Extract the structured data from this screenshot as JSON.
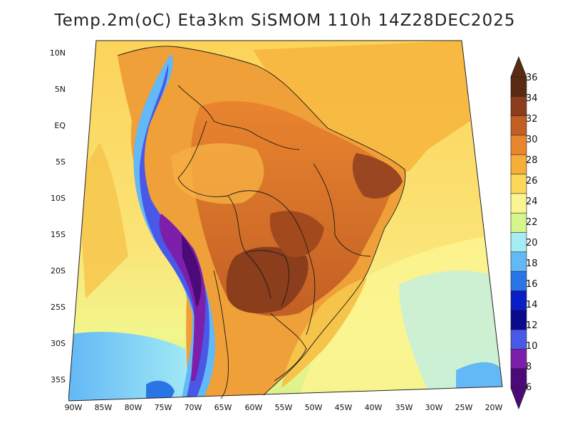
{
  "title": "Temp.2m(oC) Eta3km SiSMOM 110h 14Z28DEC2025",
  "map": {
    "variable": "2 m air temperature",
    "units": "oC",
    "region": "South America",
    "lat_labels": [
      "10N",
      "5N",
      "EQ",
      "5S",
      "10S",
      "15S",
      "20S",
      "25S",
      "30S",
      "35S"
    ],
    "lon_labels": [
      "90W",
      "85W",
      "80W",
      "75W",
      "70W",
      "65W",
      "60W",
      "55W",
      "50W",
      "45W",
      "40W",
      "35W",
      "30W",
      "25W",
      "20W"
    ]
  },
  "colorbar": {
    "labels": [
      "36",
      "34",
      "32",
      "30",
      "28",
      "26",
      "24",
      "22",
      "20",
      "18",
      "16",
      "14",
      "12",
      "10",
      "8",
      "6"
    ],
    "colors": {
      "t36": "#5a2a12",
      "t34": "#8a3e1c",
      "t32": "#c25f25",
      "t30": "#e9852e",
      "t28": "#f6ad3a",
      "t26": "#fbd85a",
      "t24": "#fbf591",
      "t22": "#d5f58d",
      "t20": "#a6ecf5",
      "t18": "#63b8f6",
      "t16": "#2a75e6",
      "t14": "#0a1ec8",
      "t12": "#0a0a8c",
      "t10": "#4a58e8",
      "t8": "#7c20ac",
      "t6": "#4c0a78"
    }
  }
}
